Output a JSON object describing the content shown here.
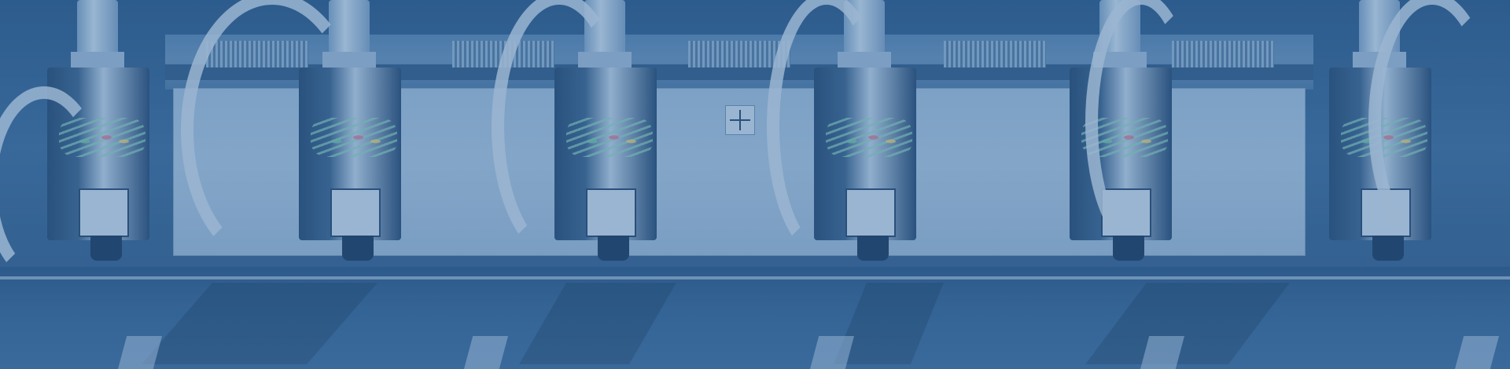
{
  "scene": {
    "description_tag": "industrial-cnc-banner",
    "tint_color": "#3f6e9d",
    "head_count": 6
  }
}
